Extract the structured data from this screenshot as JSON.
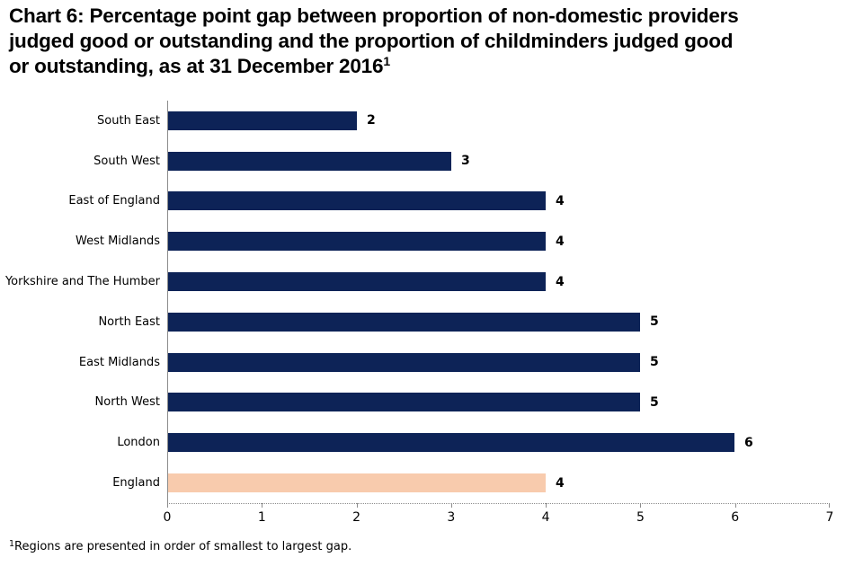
{
  "title": {
    "line1": "Chart 6: Percentage point gap between proportion of non-domestic providers",
    "line2": "judged good or outstanding and the proportion of childminders judged good",
    "line3": "or outstanding, as at 31 December 2016",
    "superscript": "1"
  },
  "footnote": {
    "superscript": "1",
    "text": "Regions are presented in order of smallest to largest gap."
  },
  "chart_data": {
    "type": "bar",
    "orientation": "horizontal",
    "title": "Chart 6: Percentage point gap between proportion of non-domestic providers judged good or outstanding and the proportion of childminders judged good or outstanding, as at 31 December 2016",
    "categories": [
      "South East",
      "South West",
      "East of England",
      "West Midlands",
      "Yorkshire and The Humber",
      "North East",
      "East Midlands",
      "North West",
      "London",
      "England"
    ],
    "values": [
      2,
      3,
      4,
      4,
      4,
      5,
      5,
      5,
      6,
      4
    ],
    "data_labels": [
      "2",
      "3",
      "4",
      "4",
      "4",
      "5",
      "5",
      "5",
      "6",
      "4"
    ],
    "xlabel": "",
    "ylabel": "",
    "xlim": [
      0,
      7
    ],
    "x_ticks": [
      "0",
      "1",
      "2",
      "3",
      "4",
      "5",
      "6",
      "7"
    ],
    "grid": "off",
    "legend": "none",
    "highlight_category": "England",
    "bar_color_regions": "#0d2357",
    "bar_color_england": "#f8cbad",
    "axis_color": "#8c8c8c",
    "text_color": "#000000",
    "footnote": "Regions are presented in order of smallest to largest gap."
  }
}
